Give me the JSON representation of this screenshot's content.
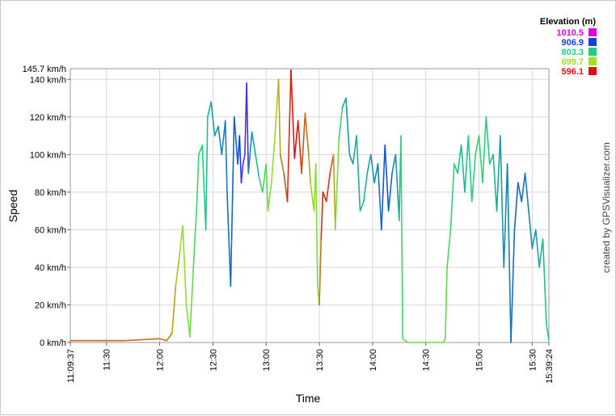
{
  "chart_data": {
    "type": "line",
    "title": "",
    "xlabel": "Time",
    "ylabel": "Speed",
    "ylim": [
      0,
      145.7
    ],
    "xlim": [
      "11:09:37",
      "15:39:24"
    ],
    "grid": true,
    "y_ticks": [
      "0 km/h",
      "20 km/h",
      "40 km/h",
      "60 km/h",
      "80 km/h",
      "100 km/h",
      "120 km/h",
      "140 km/h"
    ],
    "y_max_label": "145.7 km/h",
    "x_ticks": [
      "11:09:37",
      "11:30",
      "12:00",
      "12:30",
      "13:00",
      "13:30",
      "14:00",
      "14:30",
      "15:00",
      "15:30",
      "15:39:24"
    ],
    "series": [
      {
        "color_by": "elevation",
        "x": [
          "11:09:37",
          "11:20",
          "11:40",
          "12:00",
          "12:04",
          "12:07",
          "12:09",
          "12:11",
          "12:13",
          "12:15",
          "12:17",
          "12:19",
          "12:21",
          "12:22",
          "12:24",
          "12:26",
          "12:27",
          "12:29",
          "12:31",
          "12:33",
          "12:35",
          "12:37",
          "12:38",
          "12:40",
          "12:42",
          "12:44",
          "12:45",
          "12:46",
          "12:47",
          "12:48",
          "12:49",
          "12:50",
          "12:52",
          "12:54",
          "12:56",
          "12:58",
          "13:00",
          "13:01",
          "13:03",
          "13:05",
          "13:07",
          "13:08",
          "13:10",
          "13:12",
          "13:14",
          "13:16",
          "13:18",
          "13:20",
          "13:22",
          "13:24",
          "13:25",
          "13:27",
          "13:28",
          "13:29",
          "13:30",
          "13:31",
          "13:32",
          "13:34",
          "13:36",
          "13:38",
          "13:39",
          "13:41",
          "13:43",
          "13:45",
          "13:47",
          "13:49",
          "13:51",
          "13:53",
          "13:55",
          "13:57",
          "13:59",
          "14:01",
          "14:03",
          "14:05",
          "14:07",
          "14:09",
          "14:11",
          "14:13",
          "14:15",
          "14:16",
          "14:17",
          "14:20",
          "14:30",
          "14:40",
          "14:41",
          "14:42",
          "14:44",
          "14:46",
          "14:48",
          "14:50",
          "14:52",
          "14:54",
          "14:56",
          "14:58",
          "15:00",
          "15:02",
          "15:04",
          "15:06",
          "15:08",
          "15:10",
          "15:12",
          "15:14",
          "15:16",
          "15:18",
          "15:20",
          "15:22",
          "15:24",
          "15:26",
          "15:28",
          "15:30",
          "15:32",
          "15:34",
          "15:36",
          "15:38",
          "15:39:24"
        ],
        "y": [
          1,
          1,
          1,
          2,
          1,
          5,
          30,
          45,
          62,
          20,
          3,
          40,
          75,
          100,
          105,
          60,
          120,
          128,
          110,
          115,
          100,
          118,
          80,
          30,
          120,
          95,
          110,
          85,
          95,
          100,
          138,
          90,
          112,
          100,
          88,
          80,
          95,
          70,
          85,
          110,
          140,
          100,
          90,
          75,
          145,
          98,
          118,
          90,
          122,
          100,
          85,
          70,
          95,
          30,
          20,
          55,
          80,
          75,
          90,
          100,
          60,
          108,
          125,
          130,
          100,
          95,
          110,
          70,
          75,
          90,
          100,
          85,
          95,
          60,
          105,
          70,
          90,
          100,
          65,
          110,
          2,
          0,
          0,
          0,
          2,
          40,
          60,
          95,
          90,
          105,
          80,
          110,
          75,
          100,
          110,
          85,
          120,
          95,
          100,
          70,
          110,
          40,
          95,
          0,
          60,
          85,
          75,
          90,
          70,
          50,
          60,
          40,
          55,
          10,
          1
        ],
        "elevation": [
          640,
          640,
          640,
          650,
          640,
          660,
          680,
          690,
          700,
          720,
          730,
          760,
          780,
          790,
          800,
          810,
          820,
          830,
          840,
          850,
          860,
          860,
          870,
          880,
          880,
          890,
          900,
          910,
          1010,
          900,
          980,
          870,
          840,
          830,
          810,
          780,
          760,
          740,
          720,
          700,
          680,
          660,
          640,
          620,
          600,
          596,
          600,
          620,
          640,
          660,
          680,
          700,
          720,
          740,
          680,
          620,
          600,
          610,
          620,
          640,
          700,
          760,
          820,
          840,
          850,
          840,
          830,
          820,
          820,
          830,
          840,
          850,
          860,
          880,
          900,
          890,
          870,
          850,
          830,
          820,
          740,
          740,
          740,
          740,
          740,
          760,
          780,
          800,
          810,
          820,
          820,
          810,
          800,
          790,
          780,
          790,
          800,
          810,
          820,
          830,
          840,
          850,
          860,
          870,
          880,
          880,
          880,
          870,
          860,
          850,
          840,
          830,
          820,
          810,
          800
        ]
      }
    ],
    "legend": {
      "title": "Elevation (m)",
      "placement": "top-right",
      "items": [
        {
          "label": "1010.5",
          "color": "#dd00dd"
        },
        {
          "label": "906.9",
          "color": "#1040e0"
        },
        {
          "label": "803.3",
          "color": "#20d080"
        },
        {
          "label": "699.7",
          "color": "#a0e020"
        },
        {
          "label": "596.1",
          "color": "#dd1010"
        }
      ]
    },
    "credit": "created by GPSVisualizer.com"
  }
}
